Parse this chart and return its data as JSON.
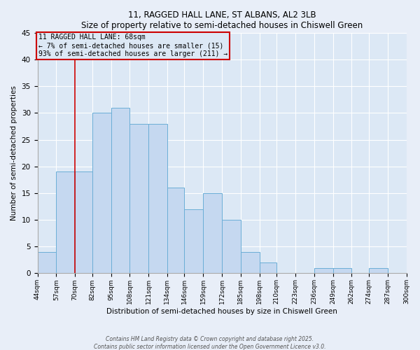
{
  "title": "11, RAGGED HALL LANE, ST ALBANS, AL2 3LB",
  "subtitle": "Size of property relative to semi-detached houses in Chiswell Green",
  "xlabel": "Distribution of semi-detached houses by size in Chiswell Green",
  "ylabel": "Number of semi-detached properties",
  "bins": [
    44,
    57,
    70,
    82,
    95,
    108,
    121,
    134,
    146,
    159,
    172,
    185,
    198,
    210,
    223,
    236,
    249,
    262,
    274,
    287,
    300
  ],
  "counts": [
    4,
    19,
    19,
    30,
    31,
    28,
    28,
    16,
    12,
    15,
    10,
    4,
    2,
    0,
    0,
    1,
    1,
    0,
    1,
    0
  ],
  "bar_color": "#c5d8f0",
  "bar_edge_color": "#6baed6",
  "vline_x": 70,
  "vline_color": "#cc0000",
  "annotation_title": "11 RAGGED HALL LANE: 68sqm",
  "annotation_line1": "← 7% of semi-detached houses are smaller (15)",
  "annotation_line2": "93% of semi-detached houses are larger (211) →",
  "annotation_box_color": "#cc0000",
  "ylim": [
    0,
    45
  ],
  "yticks": [
    0,
    5,
    10,
    15,
    20,
    25,
    30,
    35,
    40,
    45
  ],
  "tick_labels": [
    "44sqm",
    "57sqm",
    "70sqm",
    "82sqm",
    "95sqm",
    "108sqm",
    "121sqm",
    "134sqm",
    "146sqm",
    "159sqm",
    "172sqm",
    "185sqm",
    "198sqm",
    "210sqm",
    "223sqm",
    "236sqm",
    "249sqm",
    "262sqm",
    "274sqm",
    "287sqm",
    "300sqm"
  ],
  "footer1": "Contains HM Land Registry data © Crown copyright and database right 2025.",
  "footer2": "Contains public sector information licensed under the Open Government Licence v3.0.",
  "background_color": "#e8eef8",
  "plot_bg_color": "#dce8f5"
}
